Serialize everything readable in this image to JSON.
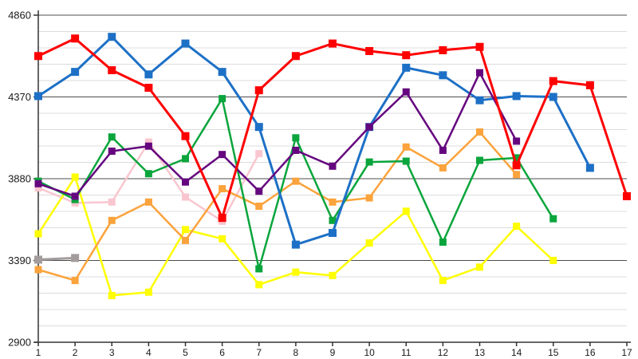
{
  "chart": {
    "y_axis_labels": [
      "4860",
      "4370",
      "3880",
      "3390",
      "2900"
    ],
    "x_axis_labels": [
      "1",
      "2",
      "3",
      "4",
      "5",
      "6",
      "7",
      "8",
      "9",
      "10",
      "11",
      "12",
      "13",
      "14",
      "15",
      "16",
      "17"
    ]
  },
  "chart_data": {
    "type": "line",
    "marker": "square",
    "grid": true,
    "legend": "none",
    "title": "",
    "xlabel": "",
    "ylabel": "",
    "x": [
      1,
      2,
      3,
      4,
      5,
      6,
      7,
      8,
      9,
      10,
      11,
      12,
      13,
      14,
      15,
      16,
      17
    ],
    "xlim": [
      1,
      17
    ],
    "ylim": [
      2900,
      4860
    ],
    "y_major_ticks": [
      2900,
      3390,
      3880,
      4370,
      4860
    ],
    "y_minor_step": 98,
    "colors": {
      "major_grid": "#4d4d4d",
      "minor_grid": "#dcdcdc",
      "axis": "#333333"
    },
    "series": [
      {
        "name": "gray",
        "color": "#a39c9c",
        "line_width": 3,
        "values": [
          3395,
          3405
        ]
      },
      {
        "name": "pink",
        "color": "#f9c6cf",
        "line_width": 2.5,
        "values": [
          3825,
          3735,
          3740,
          4100,
          3770,
          3625,
          4030
        ]
      },
      {
        "name": "yellow",
        "color": "#fefe00",
        "line_width": 2.5,
        "values": [
          3550,
          3890,
          3180,
          3200,
          3575,
          3520,
          3245,
          3320,
          3300,
          3495,
          3685,
          3270,
          3350,
          3595,
          3390
        ]
      },
      {
        "name": "orange",
        "color": "#fba33c",
        "line_width": 2.5,
        "values": [
          3335,
          3270,
          3630,
          3740,
          3510,
          3820,
          3715,
          3865,
          3740,
          3765,
          4070,
          3945,
          4160,
          3905
        ]
      },
      {
        "name": "green",
        "color": "#0aa53c",
        "line_width": 2.5,
        "values": [
          3865,
          3755,
          4130,
          3910,
          4000,
          4360,
          3340,
          4125,
          3630,
          3980,
          3985,
          3500,
          3990,
          4005,
          3640
        ]
      },
      {
        "name": "blue",
        "color": "#1d70c6",
        "line_width": 3,
        "values": [
          4375,
          4520,
          4730,
          4505,
          4690,
          4520,
          4190,
          3485,
          3555,
          4190,
          4545,
          4500,
          4350,
          4375,
          4370,
          3945
        ]
      },
      {
        "name": "purple",
        "color": "#65067f",
        "line_width": 2.5,
        "values": [
          3850,
          3775,
          4045,
          4075,
          3860,
          4025,
          3805,
          4050,
          3955,
          4190,
          4400,
          4050,
          4515,
          4105
        ]
      },
      {
        "name": "red",
        "color": "#fe0000",
        "line_width": 3,
        "values": [
          4615,
          4720,
          4530,
          4425,
          4135,
          3645,
          4410,
          4615,
          4690,
          4645,
          4620,
          4650,
          4670,
          3960,
          4465,
          4440,
          3775
        ]
      }
    ]
  }
}
